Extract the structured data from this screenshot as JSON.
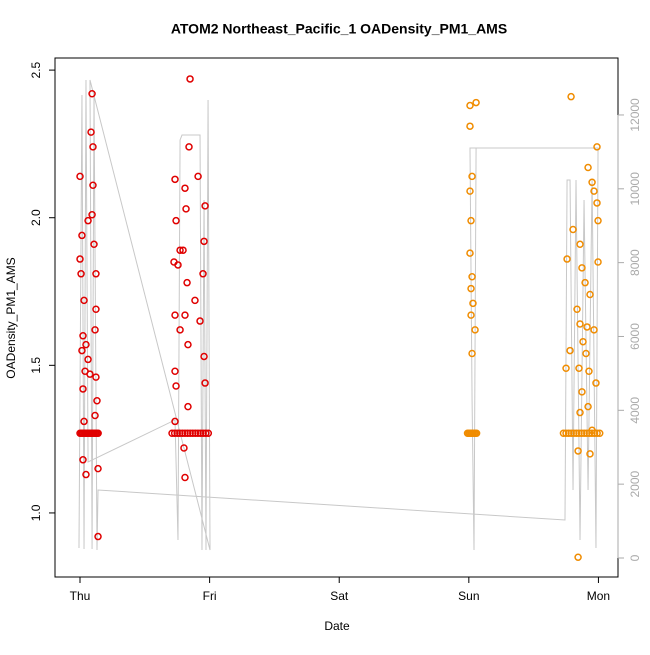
{
  "chart_data": {
    "type": "scatter",
    "title": "ATOM2 Northeast_Pacific_1 OADensity_PM1_AMS",
    "x_label": "Date",
    "y_label": "OADensity_PM1_AMS",
    "xlim": [
      -0.193,
      4.151
    ],
    "xticks": [
      {
        "value": 0,
        "label": "Thu"
      },
      {
        "value": 1,
        "label": "Fri"
      },
      {
        "value": 2,
        "label": "Sat"
      },
      {
        "value": 3,
        "label": "Sun"
      },
      {
        "value": 4,
        "label": "Mon"
      }
    ],
    "ylim": [
      0.783,
      2.541
    ],
    "yticks": [
      {
        "value": 1.0,
        "label": "1.0"
      },
      1.5,
      {
        "value": 2.0,
        "label": "2.0"
      },
      2.5
    ],
    "y2lim": [
      -515,
      13543
    ],
    "y2ticks": [
      0,
      2000,
      4000,
      6000,
      8000,
      10000,
      12000
    ],
    "series": [
      {
        "color": "#e00000",
        "x": [
          0,
          0.015,
          0,
          0.008,
          0.031,
          0.023,
          0.015,
          0.039,
          0.023,
          0.031,
          0.023,
          0.046,
          0.062,
          0.093,
          0.085,
          0.1,
          0.1,
          0.093,
          0.108,
          0.123,
          0.123,
          0.116,
          0.123,
          0.131,
          0.116,
          0.139,
          0.139,
          0.046,
          0.062,
          0.077,
          0,
          0.01,
          0.02,
          0.03,
          0.04,
          0.05,
          0.06,
          0.07,
          0.08,
          0.09,
          0.1,
          0.11,
          0.12,
          0.13,
          0.14,
          0.849,
          0.841,
          0.733,
          0.81,
          0.818,
          0.911,
          0.965,
          0.957,
          0.741,
          0.772,
          0.795,
          0.725,
          0.756,
          0.826,
          0.887,
          0.949,
          0.733,
          0.81,
          0.772,
          0.833,
          0.926,
          0.957,
          0.733,
          0.741,
          0.965,
          0.833,
          0.802,
          0.81,
          0.733,
          0.71,
          0.73,
          0.75,
          0.77,
          0.79,
          0.81,
          0.83,
          0.85,
          0.87,
          0.89,
          0.91,
          0.93,
          0.95,
          0.97,
          0.99
        ],
        "values": [
          2.14,
          1.94,
          1.86,
          1.81,
          1.72,
          1.6,
          1.55,
          1.48,
          1.42,
          1.31,
          1.18,
          1.13,
          1.99,
          2.42,
          2.29,
          2.24,
          2.11,
          2.01,
          1.91,
          1.81,
          1.69,
          1.62,
          1.46,
          1.38,
          1.33,
          1.15,
          0.92,
          1.57,
          1.52,
          1.47,
          1.27,
          1.27,
          1.27,
          1.27,
          1.27,
          1.27,
          1.27,
          1.27,
          1.27,
          1.27,
          1.27,
          1.27,
          1.27,
          1.27,
          1.27,
          2.47,
          2.24,
          2.13,
          2.1,
          2.03,
          2.14,
          2.04,
          1.92,
          1.99,
          1.89,
          1.89,
          1.85,
          1.84,
          1.78,
          1.72,
          1.81,
          1.67,
          1.67,
          1.62,
          1.57,
          1.65,
          1.53,
          1.48,
          1.43,
          1.44,
          1.36,
          1.22,
          1.12,
          1.31,
          1.27,
          1.27,
          1.27,
          1.27,
          1.27,
          1.27,
          1.27,
          1.27,
          1.27,
          1.27,
          1.27,
          1.27,
          1.27,
          1.27,
          1.27
        ]
      },
      {
        "color": "#f08c00",
        "x": [
          3.009,
          3.056,
          3.009,
          3.025,
          3.009,
          3.017,
          3.009,
          3.025,
          3.017,
          3.032,
          3.017,
          3.048,
          3.025,
          2.99,
          3.0,
          3.01,
          3.02,
          3.03,
          3.04,
          3.05,
          3.06,
          3.789,
          3.989,
          3.92,
          3.951,
          3.989,
          3.997,
          3.966,
          3.758,
          3.804,
          3.858,
          3.873,
          3.897,
          3.935,
          3.835,
          3.858,
          3.881,
          3.904,
          3.85,
          3.927,
          3.981,
          3.781,
          3.75,
          3.873,
          3.92,
          3.858,
          3.951,
          3.843,
          3.935,
          3.843,
          3.997,
          3.966,
          3.912,
          3.73,
          3.75,
          3.77,
          3.79,
          3.81,
          3.83,
          3.85,
          3.87,
          3.89,
          3.91,
          3.93,
          3.95,
          3.97,
          3.99,
          4.01
        ],
        "values": [
          2.38,
          2.39,
          2.31,
          2.14,
          2.09,
          1.99,
          1.88,
          1.8,
          1.76,
          1.71,
          1.67,
          1.62,
          1.54,
          1.27,
          1.27,
          1.27,
          1.27,
          1.27,
          1.27,
          1.27,
          1.27,
          2.41,
          2.24,
          2.17,
          2.12,
          2.05,
          1.99,
          2.09,
          1.86,
          1.96,
          1.91,
          1.83,
          1.78,
          1.74,
          1.69,
          1.64,
          1.58,
          1.54,
          1.49,
          1.48,
          1.44,
          1.55,
          1.49,
          1.41,
          1.36,
          1.34,
          1.28,
          1.21,
          1.2,
          0.85,
          1.85,
          1.62,
          1.63,
          1.27,
          1.27,
          1.27,
          1.27,
          1.27,
          1.27,
          1.27,
          1.27,
          1.27,
          1.27,
          1.27,
          1.27,
          1.27,
          1.27,
          1.27
        ]
      },
      {
        "color": "#c8c8c8",
        "axis": "y2",
        "x": [
          -0.008,
          0.015,
          0.031,
          0.046,
          0.062,
          0.733,
          0.756,
          0.772,
          0.787,
          0.926,
          0.941,
          0.957,
          0.972,
          0.988,
          1.003,
          0.077,
          0.093,
          0.108,
          0.131,
          0.139,
          3.742,
          3.758,
          3.781,
          3.804,
          3.827,
          3.858,
          3.889,
          3.92,
          3.951,
          3.981,
          3.997,
          3.009,
          3.025,
          3.04,
          3.056
        ],
        "values": [
          271,
          12540,
          244,
          12947,
          2600,
          3738,
          488,
          11322,
          11457,
          11457,
          217,
          9697,
          217,
          12405,
          217,
          12947,
          244,
          12540,
          217,
          1842,
          1029,
          10238,
          10238,
          1842,
          10238,
          488,
          9697,
          1842,
          10238,
          271,
          11105,
          11105,
          4280,
          217,
          11105
        ]
      }
    ]
  }
}
